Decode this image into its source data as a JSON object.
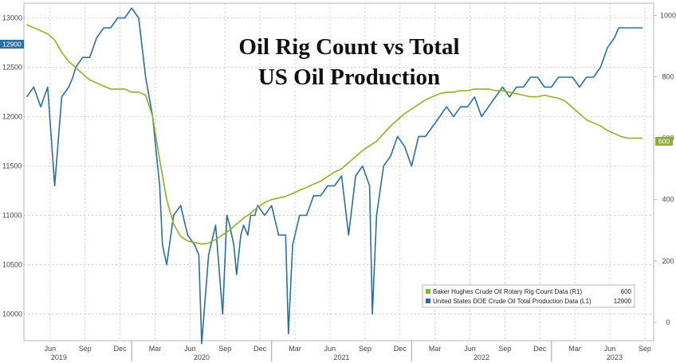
{
  "chart_data": {
    "type": "line",
    "title_line1": "Oil Rig Count vs Total",
    "title_line2": "US Oil Production",
    "left_axis": {
      "ticks": [
        "10000",
        "10500",
        "11000",
        "11500",
        "12000",
        "12500",
        "13000"
      ],
      "ylim": [
        9730,
        13150
      ]
    },
    "right_axis": {
      "ticks": [
        "0",
        "200",
        "400",
        "600",
        "800",
        "1000"
      ],
      "ylim": [
        -60,
        1040
      ]
    },
    "x_month_labels": [
      "Jun",
      "Sep",
      "Dec",
      "Mar",
      "Jun",
      "Sep",
      "Dec",
      "Mar",
      "Jun",
      "Sep",
      "Dec",
      "Mar",
      "Jun",
      "Sep",
      "Dec",
      "Mar",
      "Jun",
      "Sep"
    ],
    "x_year_labels": [
      "2019",
      "2020",
      "2021",
      "2022",
      "2023"
    ],
    "legend": [
      {
        "label": "Baker Hughes Crude Oil Rotary Rig Count Data (R1)",
        "value": "600",
        "color": "#8fb02a"
      },
      {
        "label": "United States DOE Crude Oil Total Production Data (L1)",
        "value": "12900",
        "color": "#2c6e9e"
      }
    ],
    "last_value_tags": {
      "production": "12900",
      "rigs": "600"
    },
    "series": [
      {
        "key": "production",
        "axis": "left",
        "color": "#2c6e9e",
        "x": [
          2019.25,
          2019.3,
          2019.35,
          2019.4,
          2019.45,
          2019.5,
          2019.55,
          2019.58,
          2019.6,
          2019.65,
          2019.7,
          2019.75,
          2019.8,
          2019.85,
          2019.9,
          2019.95,
          2020.0,
          2020.05,
          2020.1,
          2020.15,
          2020.2,
          2020.22,
          2020.25,
          2020.3,
          2020.35,
          2020.4,
          2020.45,
          2020.48,
          2020.5,
          2020.55,
          2020.6,
          2020.65,
          2020.68,
          2020.7,
          2020.73,
          2020.75,
          2020.78,
          2020.8,
          2020.83,
          2020.85,
          2020.88,
          2020.9,
          2020.95,
          2021.0,
          2021.05,
          2021.1,
          2021.12,
          2021.15,
          2021.2,
          2021.25,
          2021.3,
          2021.35,
          2021.4,
          2021.45,
          2021.5,
          2021.55,
          2021.6,
          2021.65,
          2021.7,
          2021.72,
          2021.75,
          2021.8,
          2021.85,
          2021.9,
          2021.95,
          2022.0,
          2022.05,
          2022.1,
          2022.15,
          2022.2,
          2022.25,
          2022.3,
          2022.35,
          2022.4,
          2022.45,
          2022.5,
          2022.55,
          2022.6,
          2022.65,
          2022.7,
          2022.75,
          2022.8,
          2022.85,
          2022.9,
          2022.95,
          2023.0,
          2023.05,
          2023.1,
          2023.15,
          2023.2,
          2023.25,
          2023.3,
          2023.35,
          2023.4,
          2023.45,
          2023.48,
          2023.5,
          2023.55,
          2023.6,
          2023.65
        ],
        "y": [
          12200,
          12300,
          12100,
          12300,
          11300,
          12200,
          12300,
          12400,
          12500,
          12600,
          12600,
          12800,
          12900,
          12900,
          13000,
          13000,
          13100,
          13000,
          12400,
          12000,
          11300,
          10700,
          10500,
          11000,
          11100,
          10800,
          10700,
          10600,
          9700,
          10600,
          10900,
          10000,
          11000,
          10900,
          10700,
          10400,
          10800,
          10900,
          10800,
          11000,
          11000,
          11100,
          11000,
          11100,
          10800,
          10800,
          9800,
          10700,
          11000,
          11000,
          11200,
          11200,
          11300,
          11300,
          11400,
          10800,
          11400,
          11500,
          11300,
          10000,
          11000,
          11500,
          11600,
          11800,
          11700,
          11500,
          11800,
          11800,
          11900,
          12000,
          12100,
          12000,
          12100,
          12100,
          12200,
          12000,
          12100,
          12200,
          12300,
          12200,
          12300,
          12300,
          12400,
          12400,
          12300,
          12300,
          12400,
          12400,
          12400,
          12300,
          12400,
          12400,
          12500,
          12700,
          12800,
          12900,
          12900,
          12900,
          12900,
          12900
        ]
      },
      {
        "key": "rigs",
        "axis": "right",
        "color": "#8fb02a",
        "x": [
          2019.25,
          2019.3,
          2019.35,
          2019.4,
          2019.45,
          2019.5,
          2019.55,
          2019.6,
          2019.65,
          2019.7,
          2019.75,
          2019.8,
          2019.85,
          2019.9,
          2019.95,
          2020.0,
          2020.05,
          2020.1,
          2020.15,
          2020.2,
          2020.25,
          2020.3,
          2020.35,
          2020.4,
          2020.45,
          2020.5,
          2020.55,
          2020.6,
          2020.65,
          2020.7,
          2020.75,
          2020.8,
          2020.85,
          2020.9,
          2020.95,
          2021.0,
          2021.05,
          2021.1,
          2021.15,
          2021.2,
          2021.25,
          2021.3,
          2021.35,
          2021.4,
          2021.45,
          2021.5,
          2021.55,
          2021.6,
          2021.65,
          2021.7,
          2021.75,
          2021.8,
          2021.85,
          2021.9,
          2021.95,
          2022.0,
          2022.05,
          2022.1,
          2022.15,
          2022.2,
          2022.25,
          2022.3,
          2022.35,
          2022.4,
          2022.45,
          2022.5,
          2022.55,
          2022.6,
          2022.65,
          2022.7,
          2022.75,
          2022.8,
          2022.85,
          2022.9,
          2022.95,
          2023.0,
          2023.05,
          2023.1,
          2023.15,
          2023.2,
          2023.25,
          2023.3,
          2023.35,
          2023.4,
          2023.45,
          2023.5,
          2023.55,
          2023.6,
          2023.65
        ],
        "y": [
          970,
          960,
          950,
          940,
          920,
          880,
          850,
          830,
          810,
          790,
          780,
          770,
          760,
          760,
          760,
          750,
          750,
          740,
          670,
          530,
          400,
          320,
          280,
          265,
          260,
          255,
          258,
          270,
          285,
          300,
          320,
          340,
          355,
          375,
          390,
          400,
          405,
          410,
          420,
          430,
          440,
          450,
          460,
          475,
          490,
          500,
          520,
          540,
          560,
          575,
          590,
          615,
          640,
          660,
          680,
          695,
          710,
          725,
          735,
          745,
          750,
          750,
          755,
          755,
          760,
          760,
          760,
          755,
          755,
          750,
          745,
          740,
          735,
          735,
          740,
          735,
          730,
          720,
          700,
          680,
          660,
          650,
          640,
          625,
          615,
          605,
          600,
          600,
          600
        ]
      }
    ]
  }
}
